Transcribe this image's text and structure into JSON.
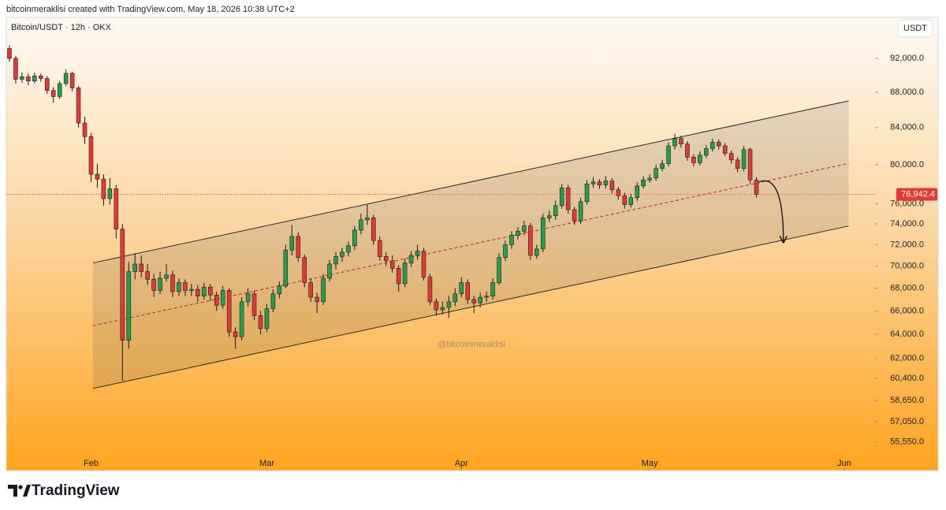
{
  "header": {
    "credit": "bitcoinmeraklisi created with TradingView.com, May 18, 2026 10:38 UTC+2"
  },
  "footer": {
    "logo": "TradingView"
  },
  "chart_data": {
    "type": "candlestick",
    "legend": "Bitcoin/USDT · 12h · OKX",
    "currency": "USDT",
    "watermark": "@bitcoinmeraklisi",
    "up_color": "#22a04b",
    "down_color": "#e53935",
    "log": true,
    "ylim": [
      53500,
      97100
    ],
    "yticks": [
      {
        "value": 92000,
        "label": "92,000.0"
      },
      {
        "value": 88000,
        "label": "88,000.0"
      },
      {
        "value": 84000,
        "label": "84,000.0"
      },
      {
        "value": 80000,
        "label": "80,000.0"
      },
      {
        "value": 76000,
        "label": "76,000.0"
      },
      {
        "value": 74000,
        "label": "74,000.0"
      },
      {
        "value": 72000,
        "label": "72,000.0"
      },
      {
        "value": 70000,
        "label": "70,000.0"
      },
      {
        "value": 68000,
        "label": "68,000.0"
      },
      {
        "value": 66000,
        "label": "66,000.0"
      },
      {
        "value": 64000,
        "label": "64,000.0"
      },
      {
        "value": 62000,
        "label": "62,000.0"
      },
      {
        "value": 60400,
        "label": "60,400.0"
      },
      {
        "value": 58650,
        "label": "58,650.0"
      },
      {
        "value": 57050,
        "label": "57,050.0"
      },
      {
        "value": 55550,
        "label": "55,550.0"
      }
    ],
    "xlim": [
      -0.5,
      137.9
    ],
    "xticks": [
      {
        "value": 13,
        "label": "Feb"
      },
      {
        "value": 41,
        "label": "Mar"
      },
      {
        "value": 72,
        "label": "Apr"
      },
      {
        "value": 102,
        "label": "May"
      },
      {
        "value": 133,
        "label": "Jun"
      }
    ],
    "price_line": {
      "value": 76942.4,
      "label": "76,942.4"
    },
    "channel": {
      "x": [
        13.3,
        133.7
      ],
      "upper": [
        70300,
        87000
      ],
      "lower": [
        59600,
        73800
      ]
    },
    "arrow": {
      "x": [
        119.4,
        123.3
      ],
      "price": [
        78200,
        72300
      ]
    },
    "ohlc": [
      [
        93200,
        93600,
        91600,
        92000
      ],
      [
        92000,
        92300,
        89000,
        89500
      ],
      [
        89500,
        90300,
        89100,
        89800
      ],
      [
        89800,
        90200,
        88800,
        89300
      ],
      [
        89300,
        90300,
        89000,
        89900
      ],
      [
        89900,
        90200,
        89200,
        89600
      ],
      [
        89600,
        89900,
        87800,
        88200
      ],
      [
        88200,
        88600,
        86800,
        87500
      ],
      [
        87500,
        89300,
        87200,
        89000
      ],
      [
        89000,
        90700,
        88700,
        90200
      ],
      [
        90200,
        90400,
        88100,
        88500
      ],
      [
        88500,
        88700,
        84000,
        84500
      ],
      [
        84500,
        85200,
        82200,
        83000
      ],
      [
        83000,
        83400,
        78200,
        79000
      ],
      [
        79000,
        80100,
        77600,
        78500
      ],
      [
        78500,
        79000,
        75800,
        76500
      ],
      [
        76500,
        78600,
        75900,
        77500
      ],
      [
        77500,
        77900,
        72600,
        73500
      ],
      [
        73500,
        74000,
        60200,
        63500
      ],
      [
        63500,
        70400,
        62800,
        69500
      ],
      [
        69500,
        71200,
        68800,
        70200
      ],
      [
        70200,
        71000,
        69000,
        69500
      ],
      [
        69500,
        70200,
        68300,
        68800
      ],
      [
        68800,
        69300,
        67200,
        67800
      ],
      [
        67800,
        69500,
        67500,
        68900
      ],
      [
        68900,
        70200,
        68600,
        69200
      ],
      [
        69200,
        69600,
        67200,
        67700
      ],
      [
        67700,
        68900,
        67300,
        68500
      ],
      [
        68500,
        68800,
        67300,
        67800
      ],
      [
        67800,
        68400,
        67300,
        67900
      ],
      [
        67900,
        68300,
        66800,
        67300
      ],
      [
        67300,
        68500,
        67000,
        68100
      ],
      [
        68100,
        68400,
        66900,
        67400
      ],
      [
        67400,
        67700,
        66000,
        66500
      ],
      [
        66500,
        68200,
        66200,
        67800
      ],
      [
        67800,
        68000,
        63800,
        64200
      ],
      [
        64200,
        64600,
        62800,
        63800
      ],
      [
        63800,
        67200,
        63500,
        66800
      ],
      [
        66800,
        68000,
        66400,
        67500
      ],
      [
        67500,
        67800,
        65200,
        65600
      ],
      [
        65600,
        66000,
        64000,
        64500
      ],
      [
        64500,
        66600,
        64200,
        66200
      ],
      [
        66200,
        67900,
        65900,
        67500
      ],
      [
        67500,
        68600,
        67100,
        68200
      ],
      [
        68200,
        72000,
        68000,
        71500
      ],
      [
        71500,
        73900,
        71000,
        72800
      ],
      [
        72800,
        73200,
        70400,
        70800
      ],
      [
        70800,
        71100,
        68100,
        68500
      ],
      [
        68500,
        68900,
        66800,
        67200
      ],
      [
        67200,
        67600,
        65800,
        66800
      ],
      [
        66800,
        69300,
        66500,
        68900
      ],
      [
        68900,
        70600,
        68600,
        70200
      ],
      [
        70200,
        71300,
        69700,
        70900
      ],
      [
        70900,
        71700,
        70400,
        71300
      ],
      [
        71300,
        72300,
        70900,
        71900
      ],
      [
        71900,
        73800,
        71500,
        73400
      ],
      [
        73400,
        75000,
        73000,
        74400
      ],
      [
        74400,
        75900,
        73900,
        74600
      ],
      [
        74600,
        74900,
        72000,
        72400
      ],
      [
        72400,
        72800,
        70500,
        70900
      ],
      [
        70900,
        71300,
        70000,
        70500
      ],
      [
        70500,
        71000,
        69400,
        69800
      ],
      [
        69800,
        70100,
        67700,
        68400
      ],
      [
        68400,
        70700,
        68100,
        70300
      ],
      [
        70300,
        71400,
        69900,
        71000
      ],
      [
        71000,
        72000,
        70600,
        71400
      ],
      [
        71400,
        71700,
        68700,
        69000
      ],
      [
        69000,
        69300,
        66500,
        66800
      ],
      [
        66800,
        67100,
        65600,
        66100
      ],
      [
        66100,
        66800,
        65700,
        66300
      ],
      [
        66300,
        67300,
        65400,
        66800
      ],
      [
        66800,
        68000,
        66400,
        67500
      ],
      [
        67500,
        69000,
        67200,
        68500
      ],
      [
        68500,
        68800,
        66600,
        67000
      ],
      [
        67000,
        67300,
        65800,
        66700
      ],
      [
        66700,
        67600,
        66300,
        67200
      ],
      [
        67200,
        67700,
        66800,
        67300
      ],
      [
        67300,
        68900,
        67000,
        68500
      ],
      [
        68500,
        71200,
        68300,
        70800
      ],
      [
        70800,
        72400,
        70500,
        72000
      ],
      [
        72000,
        73300,
        71600,
        72900
      ],
      [
        72900,
        73700,
        72500,
        73300
      ],
      [
        73300,
        74300,
        72900,
        73800
      ],
      [
        73800,
        74100,
        70600,
        71000
      ],
      [
        71000,
        72000,
        70700,
        71600
      ],
      [
        71600,
        75000,
        71300,
        74600
      ],
      [
        74600,
        75300,
        74200,
        74800
      ],
      [
        74800,
        76300,
        74400,
        75800
      ],
      [
        75800,
        78000,
        75500,
        77600
      ],
      [
        77600,
        77900,
        75000,
        75400
      ],
      [
        75400,
        75700,
        73900,
        74300
      ],
      [
        74300,
        76600,
        74000,
        76200
      ],
      [
        76200,
        78400,
        75900,
        78000
      ],
      [
        78000,
        78700,
        77600,
        78200
      ],
      [
        78200,
        78500,
        77500,
        77900
      ],
      [
        77900,
        78800,
        77500,
        78300
      ],
      [
        78300,
        78600,
        77000,
        77400
      ],
      [
        77400,
        77700,
        76400,
        76800
      ],
      [
        76800,
        77100,
        75500,
        75900
      ],
      [
        75900,
        77000,
        75600,
        76600
      ],
      [
        76600,
        78200,
        76300,
        77800
      ],
      [
        77800,
        78800,
        77500,
        78400
      ],
      [
        78400,
        79000,
        78100,
        78600
      ],
      [
        78600,
        80000,
        78300,
        79600
      ],
      [
        79600,
        80500,
        79300,
        80100
      ],
      [
        80100,
        82400,
        79800,
        82000
      ],
      [
        82000,
        83300,
        81600,
        82800
      ],
      [
        82800,
        83100,
        81800,
        82200
      ],
      [
        82200,
        82500,
        80400,
        80800
      ],
      [
        80800,
        81100,
        79800,
        80200
      ],
      [
        80200,
        81400,
        79900,
        81000
      ],
      [
        81000,
        82100,
        80700,
        81700
      ],
      [
        81700,
        82800,
        81400,
        82400
      ],
      [
        82400,
        82700,
        81600,
        82000
      ],
      [
        82000,
        82300,
        80900,
        81200
      ],
      [
        81200,
        81500,
        80100,
        80500
      ],
      [
        80500,
        80800,
        79200,
        79600
      ],
      [
        79600,
        82000,
        79300,
        81600
      ],
      [
        81600,
        81800,
        78000,
        78400
      ],
      [
        78400,
        78700,
        76600,
        76942.4
      ]
    ]
  }
}
